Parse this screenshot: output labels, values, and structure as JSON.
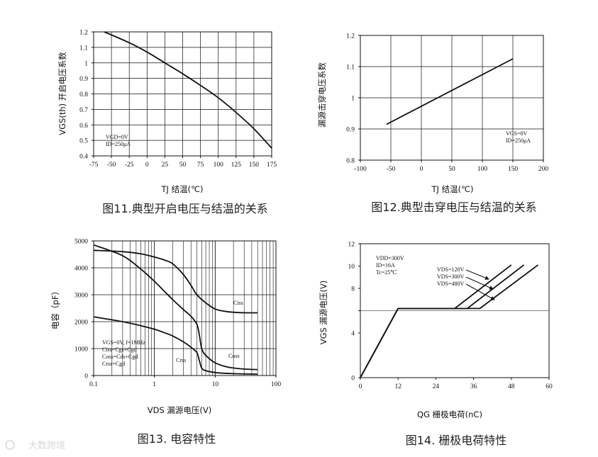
{
  "watermark": "大数跨境",
  "chart_data": [
    {
      "type": "line",
      "caption": "图11.典型开启电压与结温的关系",
      "xlabel": "TJ 结温(℃)",
      "ylabel": "VGS(th) 开启电压系数",
      "xlim": [
        -75,
        175
      ],
      "ylim": [
        0.4,
        1.2
      ],
      "xticks": [
        -75,
        -50,
        -25,
        0,
        25,
        50,
        75,
        100,
        125,
        150,
        175
      ],
      "yticks": [
        0.4,
        0.5,
        0.6,
        0.7,
        0.8,
        0.9,
        1,
        1.1,
        1.2
      ],
      "yticklabels": [
        "0.4",
        "0.5",
        "0.6",
        "0.7",
        "0.8",
        "0.9",
        "1",
        "1.1",
        "1.2"
      ],
      "grid": true,
      "annotations": [
        "VGD=0V",
        "ID=250μA"
      ],
      "series": [
        {
          "x": [
            -60,
            -25,
            0,
            25,
            50,
            75,
            100,
            125,
            150,
            175
          ],
          "y": [
            1.2,
            1.13,
            1.07,
            1.0,
            0.93,
            0.855,
            0.775,
            0.68,
            0.575,
            0.45
          ]
        }
      ]
    },
    {
      "type": "line",
      "caption": "图12.典型击穿电压与结温的关系",
      "xlabel": "TJ 结温(℃)",
      "ylabel": "漏源击穿电压系数",
      "xlim": [
        -100,
        200
      ],
      "ylim": [
        0.8,
        1.2
      ],
      "xticks": [
        -100,
        -50,
        0,
        50,
        100,
        150,
        200
      ],
      "yticks": [
        0.8,
        0.9,
        1,
        1.1,
        1.2
      ],
      "yticklabels": [
        "0.8",
        "0.9",
        "1",
        "1.1",
        "1.2"
      ],
      "grid": true,
      "annotations": [
        "VGS=0V",
        "ID=250μA"
      ],
      "series": [
        {
          "x": [
            -57,
            150
          ],
          "y": [
            0.915,
            1.125
          ]
        }
      ]
    },
    {
      "type": "line",
      "caption": "图13. 电容特性",
      "xlabel": "VDS 漏源电压(V)",
      "ylabel": "电容（pF）",
      "xscale": "log",
      "xlim": [
        0.1,
        100
      ],
      "ylim": [
        0,
        5000
      ],
      "xticks": [
        0.1,
        1,
        10,
        100
      ],
      "xticklabels": [
        "0.1",
        "1",
        "10",
        "100"
      ],
      "yticks": [
        0,
        1000,
        2000,
        3000,
        4000,
        5000
      ],
      "grid": true,
      "annotations": [
        "VGS=0V, f=1MHz",
        "Ciss=Cgs+Cgd",
        "Coss=Cds+Cgd",
        "Crss=Cgd"
      ],
      "series": [
        {
          "name": "Ciss",
          "x": [
            0.1,
            0.3,
            0.6,
            1,
            1.5,
            2,
            3,
            4,
            5,
            7,
            10,
            15,
            20,
            30,
            50
          ],
          "y": [
            4650,
            4600,
            4520,
            4400,
            4280,
            4150,
            3750,
            3350,
            3000,
            2700,
            2470,
            2380,
            2350,
            2330,
            2330
          ]
        },
        {
          "name": "Coss",
          "x": [
            0.1,
            0.3,
            0.6,
            1,
            1.5,
            2,
            3,
            4,
            5,
            5.5,
            6,
            7,
            10,
            15,
            20,
            30,
            50
          ],
          "y": [
            4850,
            4450,
            3950,
            3500,
            3100,
            2820,
            2450,
            2200,
            1900,
            1500,
            1000,
            750,
            470,
            330,
            280,
            240,
            220
          ]
        },
        {
          "name": "Crss",
          "x": [
            0.1,
            0.3,
            0.6,
            1,
            1.5,
            2,
            3,
            4,
            5,
            5.5,
            6,
            7,
            10,
            15,
            20,
            30,
            50
          ],
          "y": [
            2180,
            2000,
            1850,
            1720,
            1580,
            1470,
            1250,
            1050,
            850,
            550,
            280,
            180,
            110,
            80,
            70,
            60,
            50
          ]
        }
      ]
    },
    {
      "type": "line",
      "caption": "图14. 栅极电荷特性",
      "xlabel": "QG 栅极电荷(nC)",
      "ylabel": "VGS 漏源电压(V)",
      "xlim": [
        0,
        60
      ],
      "ylim": [
        0,
        12
      ],
      "xticks": [
        0,
        12,
        24,
        36,
        48,
        60
      ],
      "yticks": [
        0,
        4,
        6,
        8,
        10,
        12
      ],
      "yticklabels": [
        "0",
        "4",
        "",
        "8",
        "10",
        "12"
      ],
      "grid": false,
      "annotations": [
        "VDD=300V",
        "ID=16A",
        "Tc=25℃"
      ],
      "series": [
        {
          "name": "VDS=120V",
          "x": [
            0,
            12,
            30,
            48
          ],
          "y": [
            0,
            6.2,
            6.2,
            10.1
          ]
        },
        {
          "name": "VDS=300V",
          "x": [
            0,
            12,
            34,
            52
          ],
          "y": [
            0,
            6.2,
            6.2,
            10.1
          ]
        },
        {
          "name": "VDS=480V",
          "x": [
            0,
            12,
            38,
            56.5
          ],
          "y": [
            0,
            6.2,
            6.2,
            10.1
          ]
        }
      ]
    }
  ]
}
